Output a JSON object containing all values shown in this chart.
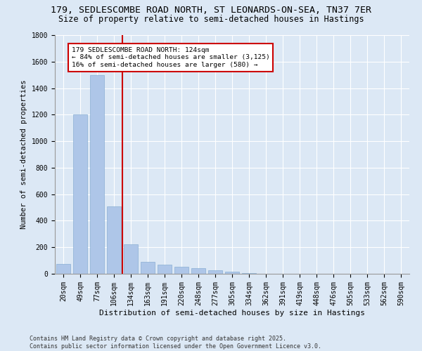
{
  "title_line1": "179, SEDLESCOMBE ROAD NORTH, ST LEONARDS-ON-SEA, TN37 7ER",
  "title_line2": "Size of property relative to semi-detached houses in Hastings",
  "xlabel": "Distribution of semi-detached houses by size in Hastings",
  "ylabel": "Number of semi-detached properties",
  "categories": [
    "20sqm",
    "49sqm",
    "77sqm",
    "106sqm",
    "134sqm",
    "163sqm",
    "191sqm",
    "220sqm",
    "248sqm",
    "277sqm",
    "305sqm",
    "334sqm",
    "362sqm",
    "391sqm",
    "419sqm",
    "448sqm",
    "476sqm",
    "505sqm",
    "533sqm",
    "562sqm",
    "590sqm"
  ],
  "values": [
    75,
    1200,
    1500,
    510,
    225,
    90,
    70,
    55,
    40,
    25,
    15,
    5,
    0,
    0,
    0,
    0,
    0,
    0,
    0,
    0,
    0
  ],
  "bar_color": "#aec6e8",
  "bar_edgecolor": "#8aafd4",
  "vline_x_index": 3,
  "vline_color": "#cc0000",
  "annotation_title": "179 SEDLESCOMBE ROAD NORTH: 124sqm",
  "annotation_line2": "← 84% of semi-detached houses are smaller (3,125)",
  "annotation_line3": "16% of semi-detached houses are larger (580) →",
  "annotation_box_color": "#cc0000",
  "ylim": [
    0,
    1800
  ],
  "yticks": [
    0,
    200,
    400,
    600,
    800,
    1000,
    1200,
    1400,
    1600,
    1800
  ],
  "footer_line1": "Contains HM Land Registry data © Crown copyright and database right 2025.",
  "footer_line2": "Contains public sector information licensed under the Open Government Licence v3.0.",
  "bg_color": "#dce8f5",
  "plot_bg_color": "#dce8f5",
  "title_fontsize": 9.5,
  "subtitle_fontsize": 8.5,
  "tick_fontsize": 7,
  "footer_fontsize": 6,
  "ylabel_fontsize": 7.5,
  "xlabel_fontsize": 8
}
